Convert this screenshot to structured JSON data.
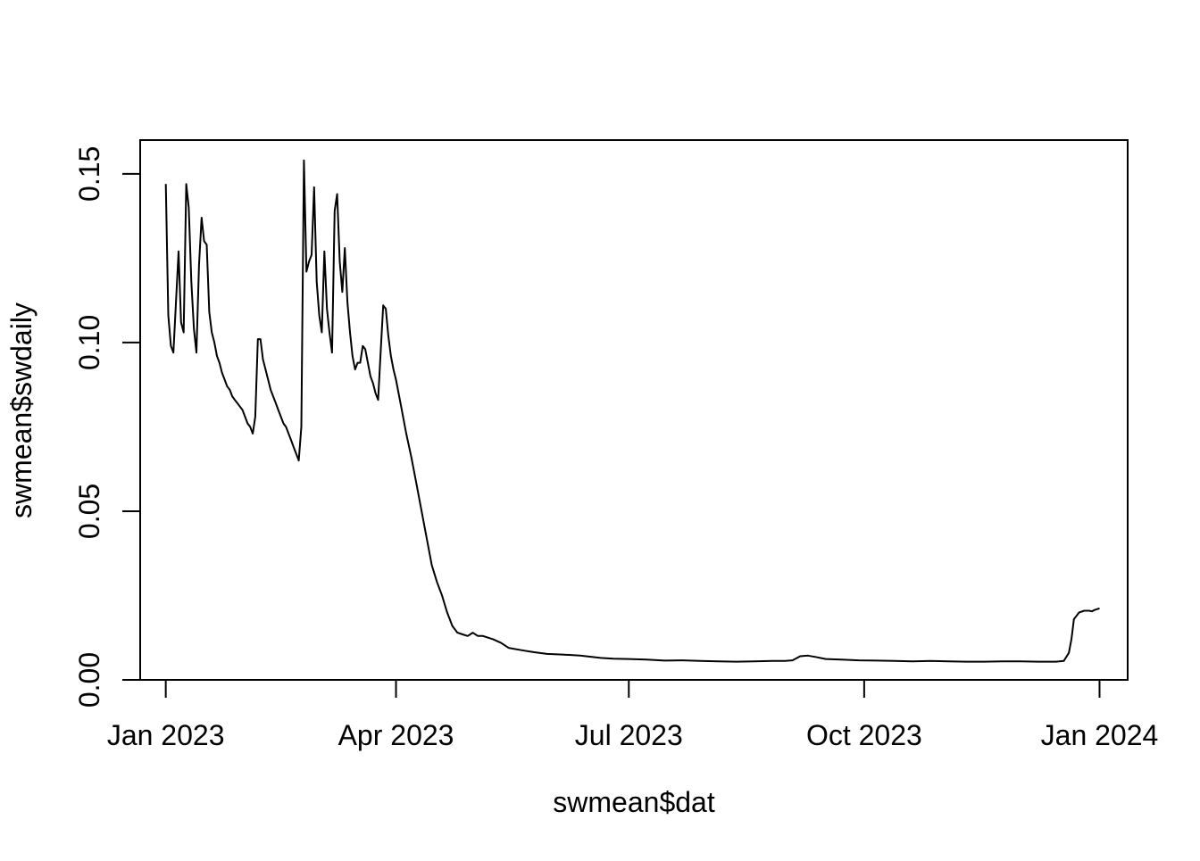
{
  "chart_data": {
    "type": "line",
    "title": "",
    "xlabel": "swmean$dat",
    "ylabel": "swmean$swdaily",
    "xlim": [
      "2022-12-22",
      "2024-01-12"
    ],
    "ylim": [
      0,
      0.16
    ],
    "x_ticks": [
      {
        "value": "2023-01-01",
        "label": "Jan 2023"
      },
      {
        "value": "2023-04-01",
        "label": "Apr 2023"
      },
      {
        "value": "2023-07-01",
        "label": "Jul 2023"
      },
      {
        "value": "2023-10-01",
        "label": "Oct 2023"
      },
      {
        "value": "2024-01-01",
        "label": "Jan 2024"
      }
    ],
    "y_ticks": [
      {
        "value": 0,
        "label": "0.00"
      },
      {
        "value": 0.05,
        "label": "0.05"
      },
      {
        "value": 0.1,
        "label": "0.10"
      },
      {
        "value": 0.15,
        "label": "0.15"
      }
    ],
    "grid": false,
    "legend": "none",
    "line_color": "#000000",
    "series": [
      {
        "points": [
          [
            "2023-01-01",
            0.147
          ],
          [
            "2023-01-02",
            0.108
          ],
          [
            "2023-01-03",
            0.099
          ],
          [
            "2023-01-04",
            0.097
          ],
          [
            "2023-01-05",
            0.112
          ],
          [
            "2023-01-06",
            0.127
          ],
          [
            "2023-01-07",
            0.106
          ],
          [
            "2023-01-08",
            0.103
          ],
          [
            "2023-01-09",
            0.147
          ],
          [
            "2023-01-10",
            0.14
          ],
          [
            "2023-01-11",
            0.118
          ],
          [
            "2023-01-12",
            0.104
          ],
          [
            "2023-01-13",
            0.097
          ],
          [
            "2023-01-14",
            0.123
          ],
          [
            "2023-01-15",
            0.137
          ],
          [
            "2023-01-16",
            0.13
          ],
          [
            "2023-01-17",
            0.129
          ],
          [
            "2023-01-18",
            0.109
          ],
          [
            "2023-01-19",
            0.103
          ],
          [
            "2023-01-20",
            0.1
          ],
          [
            "2023-01-21",
            0.096
          ],
          [
            "2023-01-22",
            0.094
          ],
          [
            "2023-01-23",
            0.091
          ],
          [
            "2023-01-24",
            0.089
          ],
          [
            "2023-01-25",
            0.087
          ],
          [
            "2023-01-26",
            0.086
          ],
          [
            "2023-01-27",
            0.084
          ],
          [
            "2023-01-28",
            0.083
          ],
          [
            "2023-01-29",
            0.082
          ],
          [
            "2023-01-30",
            0.081
          ],
          [
            "2023-01-31",
            0.08
          ],
          [
            "2023-02-01",
            0.078
          ],
          [
            "2023-02-02",
            0.076
          ],
          [
            "2023-02-03",
            0.075
          ],
          [
            "2023-02-04",
            0.073
          ],
          [
            "2023-02-05",
            0.078
          ],
          [
            "2023-02-06",
            0.101
          ],
          [
            "2023-02-07",
            0.101
          ],
          [
            "2023-02-08",
            0.095
          ],
          [
            "2023-02-09",
            0.092
          ],
          [
            "2023-02-10",
            0.089
          ],
          [
            "2023-02-11",
            0.086
          ],
          [
            "2023-02-12",
            0.084
          ],
          [
            "2023-02-13",
            0.082
          ],
          [
            "2023-02-14",
            0.08
          ],
          [
            "2023-02-15",
            0.078
          ],
          [
            "2023-02-16",
            0.076
          ],
          [
            "2023-02-17",
            0.075
          ],
          [
            "2023-02-18",
            0.073
          ],
          [
            "2023-02-19",
            0.071
          ],
          [
            "2023-02-20",
            0.069
          ],
          [
            "2023-02-21",
            0.067
          ],
          [
            "2023-02-22",
            0.065
          ],
          [
            "2023-02-23",
            0.075
          ],
          [
            "2023-02-24",
            0.154
          ],
          [
            "2023-02-25",
            0.121
          ],
          [
            "2023-02-26",
            0.124
          ],
          [
            "2023-02-27",
            0.126
          ],
          [
            "2023-02-28",
            0.146
          ],
          [
            "2023-03-01",
            0.118
          ],
          [
            "2023-03-02",
            0.108
          ],
          [
            "2023-03-03",
            0.103
          ],
          [
            "2023-03-04",
            0.127
          ],
          [
            "2023-03-05",
            0.11
          ],
          [
            "2023-03-06",
            0.103
          ],
          [
            "2023-03-07",
            0.097
          ],
          [
            "2023-03-08",
            0.139
          ],
          [
            "2023-03-09",
            0.144
          ],
          [
            "2023-03-10",
            0.124
          ],
          [
            "2023-03-11",
            0.115
          ],
          [
            "2023-03-12",
            0.128
          ],
          [
            "2023-03-13",
            0.112
          ],
          [
            "2023-03-14",
            0.103
          ],
          [
            "2023-03-15",
            0.096
          ],
          [
            "2023-03-16",
            0.092
          ],
          [
            "2023-03-17",
            0.094
          ],
          [
            "2023-03-18",
            0.094
          ],
          [
            "2023-03-19",
            0.099
          ],
          [
            "2023-03-20",
            0.098
          ],
          [
            "2023-03-21",
            0.094
          ],
          [
            "2023-03-22",
            0.09
          ],
          [
            "2023-03-23",
            0.088
          ],
          [
            "2023-03-24",
            0.085
          ],
          [
            "2023-03-25",
            0.083
          ],
          [
            "2023-03-26",
            0.097
          ],
          [
            "2023-03-27",
            0.111
          ],
          [
            "2023-03-28",
            0.11
          ],
          [
            "2023-03-29",
            0.102
          ],
          [
            "2023-03-30",
            0.096
          ],
          [
            "2023-03-31",
            0.092
          ],
          [
            "2023-04-01",
            0.089
          ],
          [
            "2023-04-03",
            0.081
          ],
          [
            "2023-04-05",
            0.073
          ],
          [
            "2023-04-07",
            0.066
          ],
          [
            "2023-04-09",
            0.058
          ],
          [
            "2023-04-11",
            0.05
          ],
          [
            "2023-04-13",
            0.042
          ],
          [
            "2023-04-15",
            0.034
          ],
          [
            "2023-04-17",
            0.029
          ],
          [
            "2023-04-19",
            0.025
          ],
          [
            "2023-04-21",
            0.02
          ],
          [
            "2023-04-23",
            0.016
          ],
          [
            "2023-04-25",
            0.014
          ],
          [
            "2023-04-27",
            0.0135
          ],
          [
            "2023-04-29",
            0.013
          ],
          [
            "2023-05-01",
            0.014
          ],
          [
            "2023-05-03",
            0.013
          ],
          [
            "2023-05-05",
            0.013
          ],
          [
            "2023-05-07",
            0.0125
          ],
          [
            "2023-05-09",
            0.012
          ],
          [
            "2023-05-12",
            0.011
          ],
          [
            "2023-05-15",
            0.0095
          ],
          [
            "2023-05-20",
            0.0088
          ],
          [
            "2023-05-25",
            0.0082
          ],
          [
            "2023-05-30",
            0.0077
          ],
          [
            "2023-06-05",
            0.0075
          ],
          [
            "2023-06-12",
            0.0072
          ],
          [
            "2023-06-20",
            0.0065
          ],
          [
            "2023-06-25",
            0.0063
          ],
          [
            "2023-07-01",
            0.0062
          ],
          [
            "2023-07-08",
            0.006
          ],
          [
            "2023-07-15",
            0.0057
          ],
          [
            "2023-07-22",
            0.0058
          ],
          [
            "2023-07-29",
            0.0056
          ],
          [
            "2023-08-05",
            0.0055
          ],
          [
            "2023-08-12",
            0.0054
          ],
          [
            "2023-08-19",
            0.0055
          ],
          [
            "2023-08-26",
            0.0056
          ],
          [
            "2023-08-31",
            0.0056
          ],
          [
            "2023-09-03",
            0.0058
          ],
          [
            "2023-09-06",
            0.007
          ],
          [
            "2023-09-09",
            0.0072
          ],
          [
            "2023-09-12",
            0.0068
          ],
          [
            "2023-09-16",
            0.0062
          ],
          [
            "2023-09-22",
            0.006
          ],
          [
            "2023-09-29",
            0.0058
          ],
          [
            "2023-10-06",
            0.0057
          ],
          [
            "2023-10-13",
            0.0056
          ],
          [
            "2023-10-20",
            0.0055
          ],
          [
            "2023-10-27",
            0.0056
          ],
          [
            "2023-11-03",
            0.0055
          ],
          [
            "2023-11-10",
            0.0054
          ],
          [
            "2023-11-17",
            0.0054
          ],
          [
            "2023-11-24",
            0.0055
          ],
          [
            "2023-12-01",
            0.0055
          ],
          [
            "2023-12-08",
            0.0054
          ],
          [
            "2023-12-15",
            0.0054
          ],
          [
            "2023-12-18",
            0.0056
          ],
          [
            "2023-12-20",
            0.008
          ],
          [
            "2023-12-21",
            0.012
          ],
          [
            "2023-12-22",
            0.018
          ],
          [
            "2023-12-23",
            0.019
          ],
          [
            "2023-12-24",
            0.02
          ],
          [
            "2023-12-26",
            0.0205
          ],
          [
            "2023-12-28",
            0.0205
          ],
          [
            "2023-12-29",
            0.0203
          ],
          [
            "2023-12-30",
            0.0207
          ],
          [
            "2024-01-01",
            0.0212
          ]
        ]
      }
    ]
  }
}
